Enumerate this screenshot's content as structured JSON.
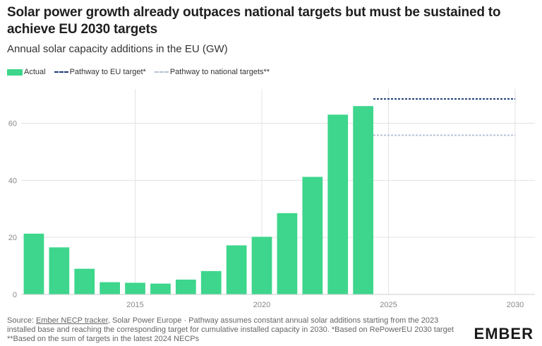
{
  "title": "Solar power growth already outpaces national targets but must be sustained to achieve EU 2030 targets",
  "subtitle": "Annual solar capacity additions in the EU (GW)",
  "legend": {
    "actual": "Actual",
    "eu_pathway": "Pathway to EU target*",
    "national_pathway": "Pathway to national targets**"
  },
  "footer": {
    "source_prefix": "Source: ",
    "source_link": "Ember NECP tracker",
    "text": ", Solar Power Europe · Pathway assumes constant annual solar additions starting from the 2023 installed base and reaching the corresponding target for cumulative installed capacity in 2030. *Based on RePowerEU 2030 target **Based on the sum of targets in the latest 2024 NECPs"
  },
  "logo": "EMBER",
  "colors": {
    "actual": "#3dd68c",
    "eu_pathway": "#1d3c78",
    "national_pathway": "#b7c2d6",
    "grid": "#e3e3e3"
  },
  "chart_data": {
    "type": "bar",
    "xlim": [
      2010.5,
      2030
    ],
    "ylim": [
      0,
      72
    ],
    "x_ticks": [
      2015,
      2020,
      2025,
      2030
    ],
    "y_ticks": [
      0,
      20,
      40,
      60
    ],
    "series": [
      {
        "name": "Actual",
        "x": [
          2011,
          2012,
          2013,
          2014,
          2015,
          2016,
          2017,
          2018,
          2019,
          2020,
          2021,
          2022,
          2023,
          2024
        ],
        "values": [
          21.3,
          16.5,
          9.0,
          4.3,
          4.1,
          3.8,
          5.2,
          8.2,
          17.2,
          20.2,
          28.5,
          41.2,
          63.0,
          66.0
        ]
      },
      {
        "name": "Pathway to EU target*",
        "x": [
          2024.4,
          2030
        ],
        "values": [
          68.5,
          68.5
        ]
      },
      {
        "name": "Pathway to national targets**",
        "x": [
          2024.4,
          2030
        ],
        "values": [
          55.8,
          55.8
        ]
      }
    ]
  }
}
